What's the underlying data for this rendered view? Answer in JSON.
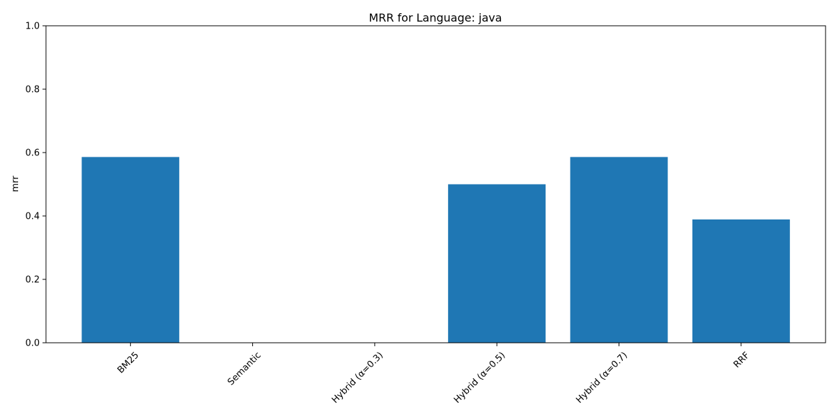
{
  "chart_data": {
    "type": "bar",
    "title": "MRR for Language: java",
    "xlabel": "",
    "ylabel": "mrr",
    "categories": [
      "BM25",
      "Semantic",
      "Hybrid (α=0.3)",
      "Hybrid (α=0.5)",
      "Hybrid (α=0.7)",
      "RRF"
    ],
    "values": [
      0.586,
      0.0,
      0.0,
      0.5,
      0.586,
      0.389
    ],
    "ylim": [
      0,
      1.0
    ],
    "yticks": [
      "0.0",
      "0.2",
      "0.4",
      "0.6",
      "0.8",
      "1.0"
    ],
    "grid": false,
    "bar_color": "#1f77b4",
    "xtick_rotation_deg": 45
  }
}
